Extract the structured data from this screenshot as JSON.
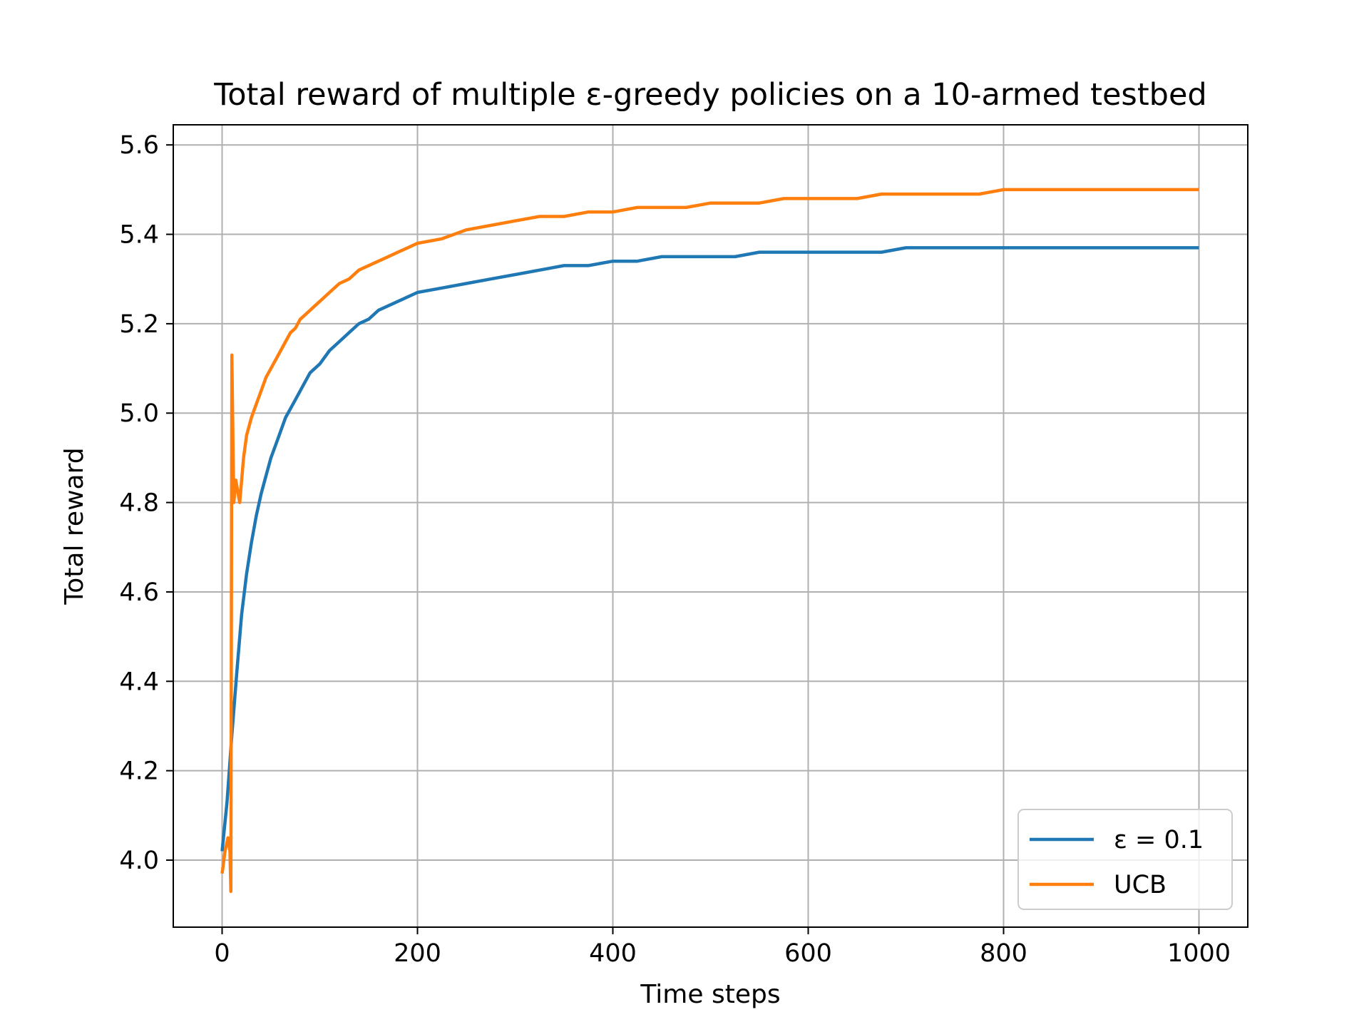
{
  "chart_data": {
    "type": "line",
    "title": "Total reward of multiple ε-greedy policies on a 10-armed testbed",
    "xlabel": "Time steps",
    "ylabel": "Total reward",
    "xlim": [
      -50,
      1050
    ],
    "ylim": [
      3.85,
      5.645
    ],
    "xticks": [
      0,
      200,
      400,
      600,
      800,
      1000
    ],
    "xtick_labels": [
      "0",
      "200",
      "400",
      "600",
      "800",
      "1000"
    ],
    "yticks": [
      4.0,
      4.2,
      4.4,
      4.6,
      4.8,
      5.0,
      5.2,
      5.4,
      5.6
    ],
    "ytick_labels": [
      "4.0",
      "4.2",
      "4.4",
      "4.6",
      "4.8",
      "5.0",
      "5.2",
      "5.4",
      "5.6"
    ],
    "grid": true,
    "legend_position": "bottom-right",
    "series": [
      {
        "name": "ε = 0.1",
        "color": "#1f77b4",
        "x": [
          0,
          5,
          10,
          15,
          20,
          25,
          30,
          35,
          40,
          45,
          50,
          55,
          60,
          65,
          70,
          75,
          80,
          85,
          90,
          95,
          100,
          110,
          120,
          130,
          140,
          150,
          160,
          170,
          180,
          190,
          200,
          225,
          250,
          275,
          300,
          325,
          350,
          375,
          400,
          425,
          450,
          475,
          500,
          525,
          550,
          575,
          600,
          625,
          650,
          675,
          700,
          725,
          750,
          775,
          800,
          825,
          850,
          875,
          900,
          925,
          950,
          975,
          1000
        ],
        "y": [
          4.02,
          4.13,
          4.28,
          4.42,
          4.55,
          4.64,
          4.71,
          4.77,
          4.82,
          4.86,
          4.9,
          4.93,
          4.96,
          4.99,
          5.01,
          5.03,
          5.05,
          5.07,
          5.09,
          5.1,
          5.11,
          5.14,
          5.16,
          5.18,
          5.2,
          5.21,
          5.23,
          5.24,
          5.25,
          5.26,
          5.27,
          5.28,
          5.29,
          5.3,
          5.31,
          5.32,
          5.33,
          5.33,
          5.34,
          5.34,
          5.35,
          5.35,
          5.35,
          5.35,
          5.36,
          5.36,
          5.36,
          5.36,
          5.36,
          5.36,
          5.37,
          5.37,
          5.37,
          5.37,
          5.37,
          5.37,
          5.37,
          5.37,
          5.37,
          5.37,
          5.37,
          5.37,
          5.37
        ]
      },
      {
        "name": "UCB",
        "color": "#ff7f0e",
        "x": [
          0,
          3,
          6,
          8,
          9,
          10,
          11,
          12,
          14,
          18,
          22,
          25,
          30,
          35,
          40,
          45,
          50,
          55,
          60,
          65,
          70,
          75,
          80,
          85,
          90,
          95,
          100,
          110,
          120,
          130,
          140,
          150,
          160,
          170,
          180,
          190,
          200,
          225,
          250,
          275,
          300,
          325,
          350,
          375,
          400,
          425,
          450,
          475,
          500,
          525,
          550,
          575,
          600,
          625,
          650,
          675,
          700,
          725,
          750,
          775,
          800,
          825,
          850,
          875,
          900,
          925,
          950,
          975,
          1000
        ],
        "y": [
          3.97,
          4.02,
          4.05,
          4.02,
          3.93,
          5.13,
          4.95,
          4.8,
          4.85,
          4.8,
          4.9,
          4.95,
          4.99,
          5.02,
          5.05,
          5.08,
          5.1,
          5.12,
          5.14,
          5.16,
          5.18,
          5.19,
          5.21,
          5.22,
          5.23,
          5.24,
          5.25,
          5.27,
          5.29,
          5.3,
          5.32,
          5.33,
          5.34,
          5.35,
          5.36,
          5.37,
          5.38,
          5.39,
          5.41,
          5.42,
          5.43,
          5.44,
          5.44,
          5.45,
          5.45,
          5.46,
          5.46,
          5.46,
          5.47,
          5.47,
          5.47,
          5.48,
          5.48,
          5.48,
          5.48,
          5.49,
          5.49,
          5.49,
          5.49,
          5.49,
          5.5,
          5.5,
          5.5,
          5.5,
          5.5,
          5.5,
          5.5,
          5.5,
          5.5
        ]
      }
    ]
  }
}
